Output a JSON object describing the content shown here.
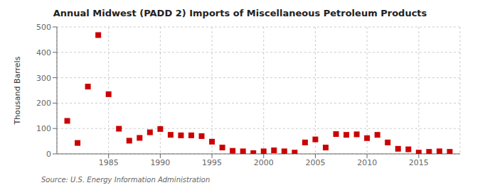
{
  "chart_data": {
    "type": "scatter",
    "title": "Annual Midwest (PADD 2) Imports of Miscellaneous Petroleum Products",
    "ylabel": "Thousand Barrels",
    "annotation": "Source: U.S. Energy Information Administration",
    "x": [
      1981,
      1982,
      1983,
      1984,
      1985,
      1986,
      1987,
      1988,
      1989,
      1990,
      1991,
      1992,
      1993,
      1994,
      1995,
      1996,
      1997,
      1998,
      1999,
      2000,
      2001,
      2002,
      2003,
      2004,
      2005,
      2006,
      2007,
      2008,
      2009,
      2010,
      2011,
      2012,
      2013,
      2014,
      2015,
      2016,
      2017,
      2018
    ],
    "values": [
      130,
      43,
      265,
      468,
      235,
      99,
      52,
      63,
      85,
      98,
      75,
      73,
      73,
      70,
      48,
      25,
      12,
      10,
      3,
      10,
      14,
      10,
      5,
      45,
      57,
      25,
      78,
      75,
      77,
      62,
      75,
      45,
      20,
      18,
      5,
      8,
      10,
      8
    ],
    "color": "#cc0000",
    "marker": "square",
    "xlim": [
      1980,
      2019
    ],
    "xticks": [
      1985,
      1990,
      1995,
      2000,
      2005,
      2010,
      2015
    ],
    "ylim": [
      0,
      500
    ],
    "yticks": [
      0,
      100,
      200,
      300,
      400,
      500
    ],
    "grid": true
  }
}
